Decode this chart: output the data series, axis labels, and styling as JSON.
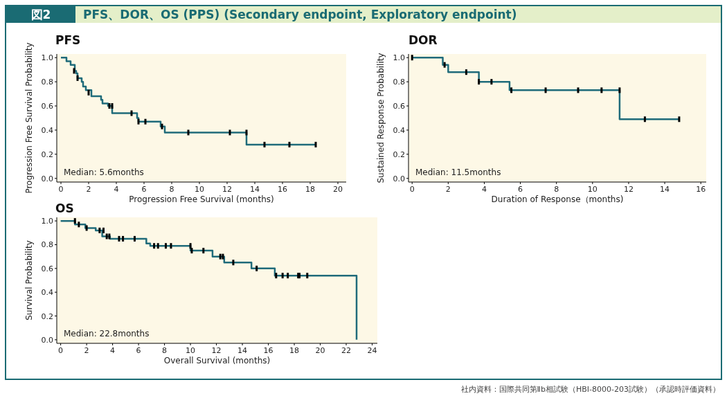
{
  "chart_data": [
    {
      "type": "other",
      "title": "図2",
      "subtitle": "PFS、DOR、OS (PPS) (Secondary endpoint, Exploratory endpoint)",
      "annotations": [
        "社内資料：国際共同第Ⅱb相試験（HBI-8000-203試験）（承認時評価資料）"
      ]
    },
    {
      "type": "step",
      "title": "PFS",
      "xlabel": "Progression Free Survival (months)",
      "ylabel": "Progression Free Survival Probability",
      "xlim": [
        -0.3,
        20.6
      ],
      "xticks": [
        0,
        2,
        4,
        6,
        8,
        10,
        12,
        14,
        16,
        18,
        20
      ],
      "ylim": [
        -0.03,
        1.03
      ],
      "yticks": [
        {
          "value": 0,
          "label": "0.0"
        },
        {
          "value": 0.2,
          "label": "0.2"
        },
        {
          "value": 0.4,
          "label": "0.4"
        },
        {
          "value": 0.6,
          "label": "0.6"
        },
        {
          "value": 0.8,
          "label": "0.8"
        },
        {
          "value": 1,
          "label": "1.0"
        }
      ],
      "annotations": [
        "Median: 5.6months"
      ],
      "series": [
        {
          "type": "step",
          "color": "#1f6b7a",
          "x": [
            0,
            0.4,
            0.7,
            1.0,
            1.1,
            1.2,
            1.5,
            1.6,
            1.8,
            2.2,
            2.9,
            3.0,
            3.4,
            3.7,
            5.5,
            5.6,
            7.2,
            7.5,
            13.4,
            18.4
          ],
          "values": [
            1.0,
            0.97,
            0.94,
            0.89,
            0.87,
            0.83,
            0.8,
            0.76,
            0.73,
            0.68,
            0.65,
            0.62,
            0.6,
            0.54,
            0.5,
            0.47,
            0.43,
            0.38,
            0.28,
            0.28
          ]
        },
        {
          "type": "scatter",
          "color": "#000000",
          "x": [
            0.95,
            1.2,
            2.0,
            3.5,
            3.7,
            5.1,
            5.6,
            6.1,
            7.3,
            9.2,
            12.2,
            13.4,
            14.7,
            16.5,
            18.4
          ],
          "values": [
            0.89,
            0.83,
            0.71,
            0.6,
            0.6,
            0.54,
            0.47,
            0.47,
            0.43,
            0.38,
            0.38,
            0.38,
            0.28,
            0.28,
            0.28
          ]
        }
      ]
    },
    {
      "type": "step",
      "title": "DOR",
      "xlabel": "Duration of Response（months)",
      "ylabel": "Sustained Response Probability",
      "xlim": [
        -0.2,
        16.3
      ],
      "xticks": [
        0,
        2,
        4,
        6,
        8,
        10,
        12,
        14,
        16
      ],
      "ylim": [
        -0.03,
        1.03
      ],
      "yticks": [
        {
          "value": 0,
          "label": "0.0"
        },
        {
          "value": 0.2,
          "label": "0.2"
        },
        {
          "value": 0.4,
          "label": "0.4"
        },
        {
          "value": 0.6,
          "label": "0.6"
        },
        {
          "value": 0.8,
          "label": "0.8"
        },
        {
          "value": 1,
          "label": "1.0"
        }
      ],
      "annotations": [
        "Median: 11.5months"
      ],
      "series": [
        {
          "type": "step",
          "color": "#1f6b7a",
          "x": [
            0,
            1.7,
            2.0,
            3.7,
            5.4,
            11.5,
            14.8
          ],
          "values": [
            1.0,
            0.94,
            0.88,
            0.8,
            0.73,
            0.49,
            0.49
          ]
        },
        {
          "type": "scatter",
          "color": "#000000",
          "x": [
            0,
            1.8,
            3.0,
            3.7,
            4.4,
            5.5,
            7.4,
            9.2,
            10.5,
            11.5,
            12.9,
            14.8
          ],
          "values": [
            1.0,
            0.94,
            0.88,
            0.8,
            0.8,
            0.73,
            0.73,
            0.73,
            0.73,
            0.73,
            0.49,
            0.49
          ]
        }
      ]
    },
    {
      "type": "step",
      "title": "OS",
      "xlabel": "Overall Survival (months)",
      "ylabel": "Survival Probability",
      "xlim": [
        -0.3,
        24.4
      ],
      "xticks": [
        0,
        2,
        4,
        6,
        8,
        10,
        12,
        14,
        16,
        18,
        20,
        22,
        24
      ],
      "ylim": [
        -0.03,
        1.03
      ],
      "yticks": [
        {
          "value": 0,
          "label": "0.0"
        },
        {
          "value": 0.2,
          "label": "0.2"
        },
        {
          "value": 0.4,
          "label": "0.4"
        },
        {
          "value": 0.6,
          "label": "0.6"
        },
        {
          "value": 0.8,
          "label": "0.8"
        },
        {
          "value": 1,
          "label": "1.0"
        }
      ],
      "annotations": [
        "Median: 22.8months"
      ],
      "series": [
        {
          "type": "step",
          "color": "#1f6b7a",
          "x": [
            0,
            1.1,
            1.9,
            2.7,
            3.2,
            3.8,
            6.6,
            6.9,
            10.0,
            11.7,
            12.6,
            14.7,
            16.5,
            22.8
          ],
          "values": [
            1.0,
            0.97,
            0.94,
            0.92,
            0.87,
            0.85,
            0.81,
            0.79,
            0.75,
            0.7,
            0.65,
            0.6,
            0.54,
            0.0
          ]
        },
        {
          "type": "scatter",
          "color": "#000000",
          "x": [
            1.1,
            1.4,
            2.0,
            3.0,
            3.3,
            3.55,
            3.75,
            4.5,
            4.8,
            5.7,
            7.2,
            7.5,
            8.1,
            8.5,
            10.0,
            10.1,
            11.0,
            12.3,
            12.5,
            13.3,
            15.1,
            16.6,
            17.1,
            17.5,
            18.3,
            18.4,
            19.0
          ],
          "values": [
            1.0,
            0.97,
            0.94,
            0.92,
            0.92,
            0.87,
            0.87,
            0.85,
            0.85,
            0.85,
            0.79,
            0.79,
            0.79,
            0.79,
            0.79,
            0.75,
            0.75,
            0.7,
            0.7,
            0.65,
            0.6,
            0.54,
            0.54,
            0.54,
            0.54,
            0.54,
            0.54
          ]
        }
      ]
    }
  ]
}
